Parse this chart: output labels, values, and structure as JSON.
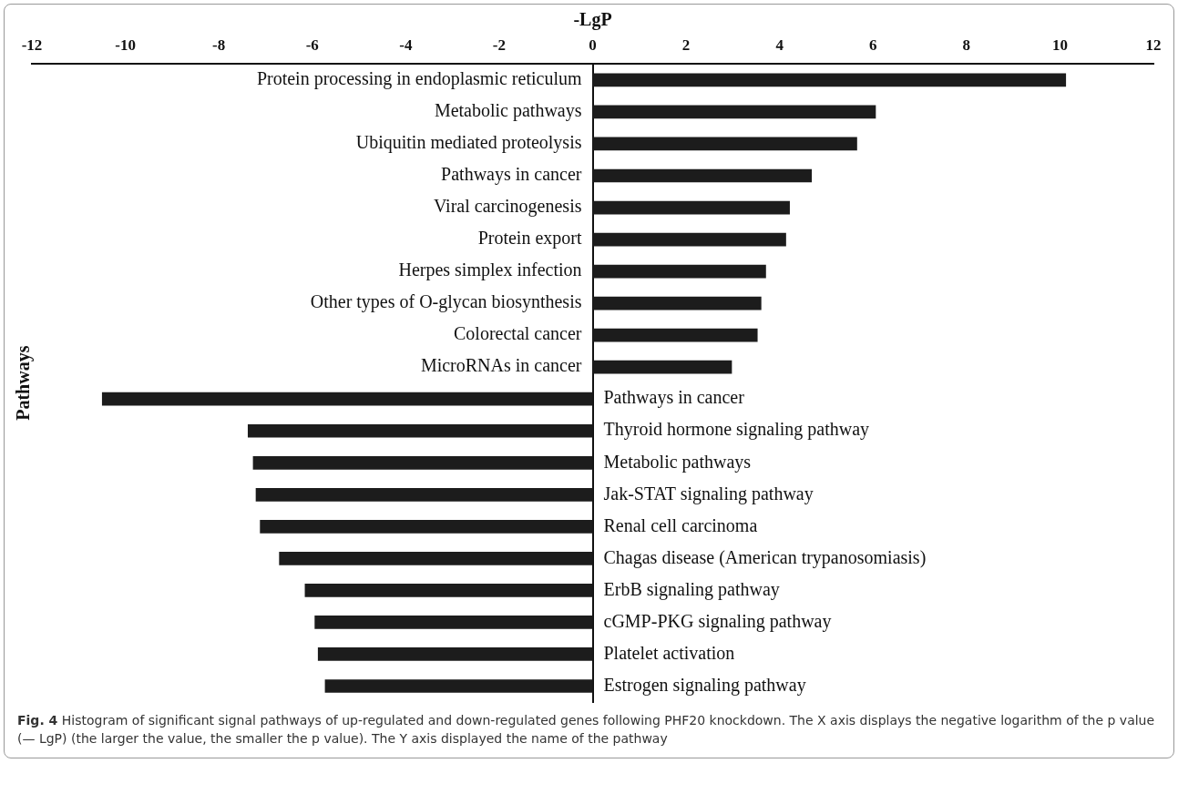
{
  "chart_data": {
    "type": "bar",
    "orientation": "horizontal",
    "xlabel": "-LgP",
    "ylabel": "Pathways",
    "categories": [
      "Protein processing in endoplasmic reticulum",
      "Metabolic pathways",
      "Ubiquitin mediated proteolysis",
      "Pathways in cancer",
      "Viral carcinogenesis",
      "Protein export",
      "Herpes simplex infection",
      "Other types of O-glycan biosynthesis",
      "Colorectal cancer",
      "MicroRNAs in cancer",
      "Pathways in cancer",
      "Thyroid hormone signaling pathway",
      "Metabolic pathways",
      "Jak-STAT signaling pathway",
      "Renal cell carcinoma",
      "Chagas disease (American trypanosomiasis)",
      "ErbB signaling pathway",
      "cGMP-PKG signaling pathway",
      "Platelet activation",
      "Estrogen signaling pathway"
    ],
    "values": [
      10.13,
      6.06,
      5.66,
      4.69,
      4.22,
      4.14,
      3.71,
      3.61,
      3.53,
      2.98,
      -10.5,
      -7.38,
      -7.27,
      -7.21,
      -7.12,
      -6.71,
      -6.16,
      -5.95,
      -5.88,
      -5.73
    ],
    "color": "#1c1c1c",
    "xlim": [
      -12,
      12
    ],
    "xticks": [
      -12,
      -10,
      -8,
      -6,
      -4,
      -2,
      0,
      2,
      4,
      6,
      8,
      10,
      12
    ],
    "grid": false,
    "legend": false,
    "annotations": [
      "Fig. 4  Histogram of significant signal pathways of up-regulated and down-regulated genes following PHF20 knockdown. The X axis displays the negative logarithm of the p value (— LgP) (the larger the value, the smaller the p value). The Y axis displayed the name of the pathway"
    ]
  }
}
